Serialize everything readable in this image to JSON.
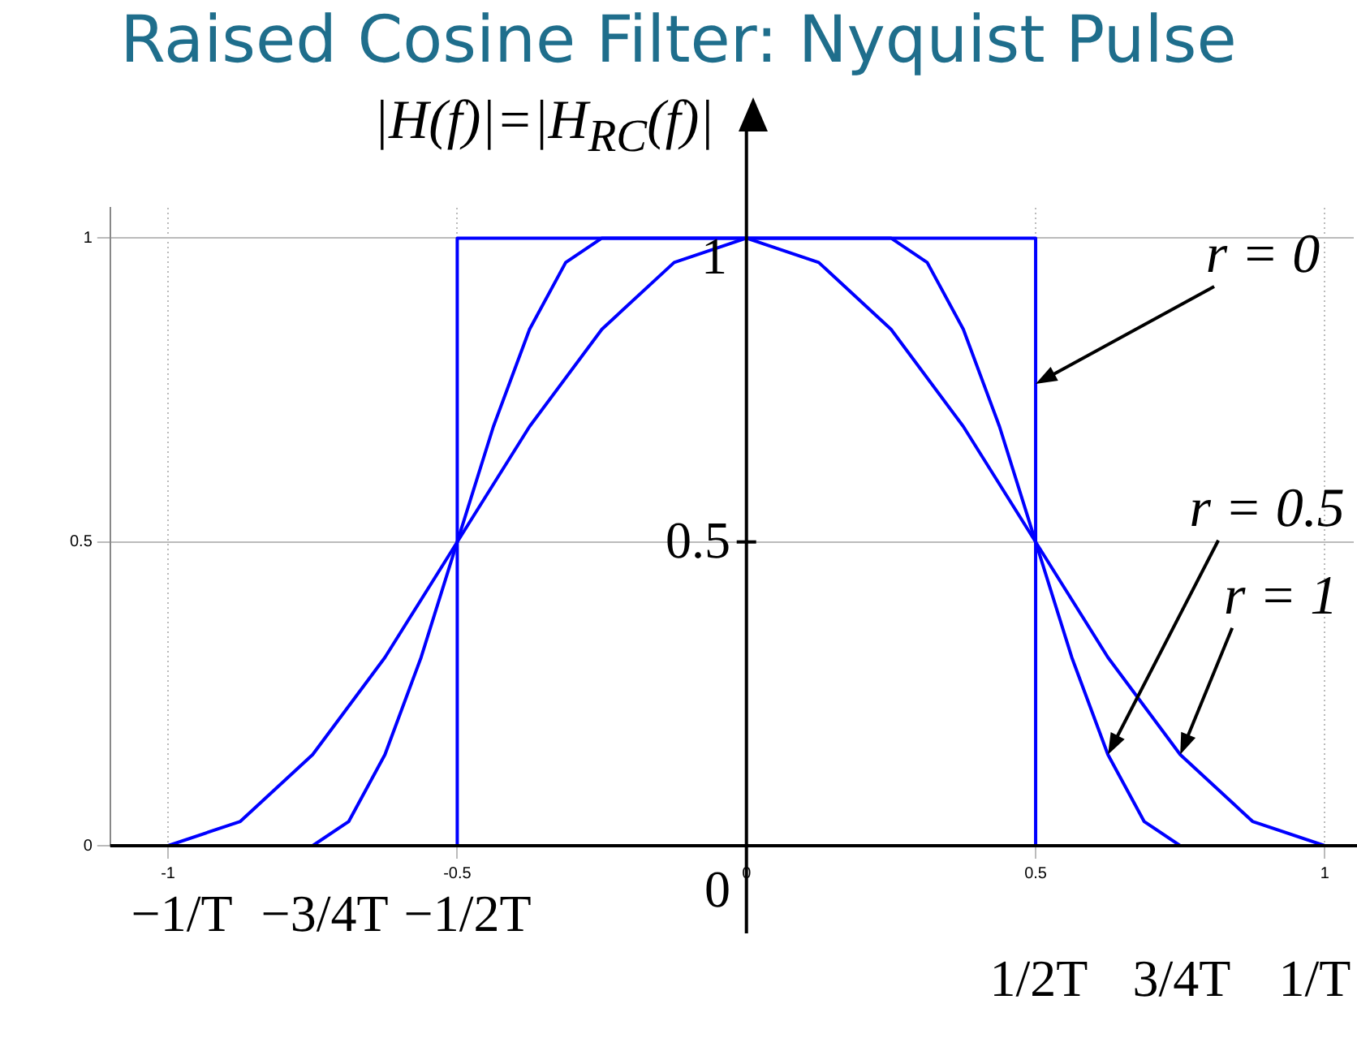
{
  "chart_data": {
    "type": "line",
    "title": "Raised Cosine Filter: Nyquist Pulse",
    "ylabel": "|H(f)|=|H$_{RC}$(f)|",
    "xlim": [
      -1.1,
      1.05
    ],
    "ylim": [
      0,
      1.05
    ],
    "xticks": [
      -1,
      -0.5,
      0,
      0.5,
      1
    ],
    "yticks": [
      0,
      0.5,
      1
    ],
    "grid": true,
    "marker": "none",
    "series": [
      {
        "color": "#0000ff",
        "x": [
          -0.5,
          -0.5,
          0.5,
          0.5
        ],
        "values": [
          0,
          1,
          1,
          0
        ]
      },
      {
        "color": "#0000ff",
        "x": [
          -0.75,
          -0.6875,
          -0.625,
          -0.5625,
          -0.5,
          -0.4375,
          -0.375,
          -0.3125,
          -0.25,
          0.25,
          0.3125,
          0.375,
          0.4375,
          0.5,
          0.5625,
          0.625,
          0.6875,
          0.75
        ],
        "values": [
          0,
          0.04,
          0.15,
          0.31,
          0.5,
          0.69,
          0.85,
          0.96,
          1,
          1,
          0.96,
          0.85,
          0.69,
          0.5,
          0.31,
          0.15,
          0.04,
          0
        ]
      },
      {
        "color": "#0000ff",
        "x": [
          -1,
          -0.875,
          -0.75,
          -0.625,
          -0.5,
          -0.375,
          -0.25,
          -0.125,
          0,
          0.125,
          0.25,
          0.375,
          0.5,
          0.625,
          0.75,
          0.875,
          1
        ],
        "values": [
          0,
          0.04,
          0.15,
          0.31,
          0.5,
          0.69,
          0.85,
          0.96,
          1,
          0.96,
          0.85,
          0.69,
          0.5,
          0.31,
          0.15,
          0.04,
          0
        ]
      }
    ],
    "annotations": [
      {
        "text": "r = 0",
        "x": 0.5,
        "y": 0.76
      },
      {
        "text": "r = 0.5",
        "x": 0.625,
        "y": 0.15
      },
      {
        "text": "r = 1",
        "x": 0.75,
        "y": 0.15
      },
      "1",
      "0.5",
      "0",
      "−1/T",
      "−3/4T",
      "−1/2T",
      "1/2T",
      "3/4T",
      "1/T"
    ]
  }
}
